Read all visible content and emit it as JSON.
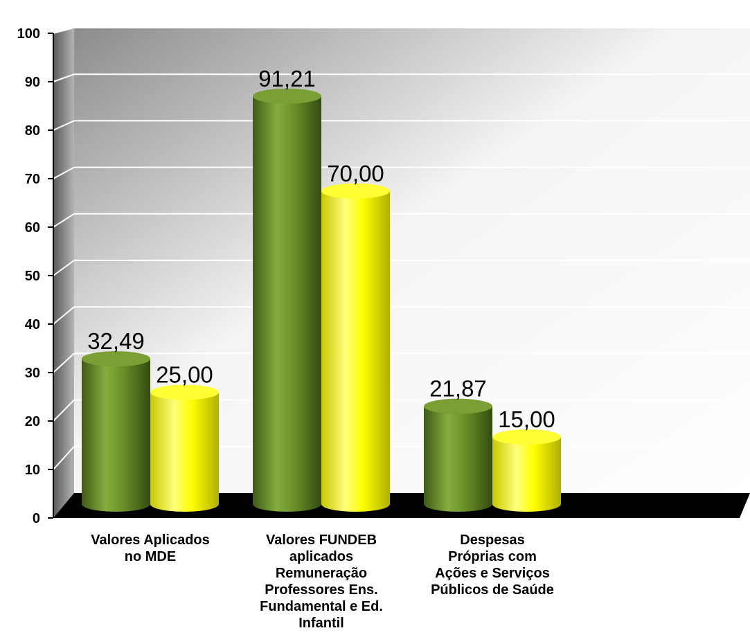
{
  "chart_data": {
    "type": "bar",
    "categories": [
      [
        "Valores Aplicados",
        "no MDE"
      ],
      [
        "Valores FUNDEB",
        "aplicados",
        "Remuneração",
        "Professores Ens.",
        "Fundamental e Ed.",
        "Infantil"
      ],
      [
        "Despesas",
        "Próprias com",
        "Ações e Serviços",
        "Públicos de Saúde"
      ]
    ],
    "series": [
      {
        "values": [
          32.49,
          91.21,
          21.87
        ],
        "labels": [
          "32,49",
          "91,21",
          "21,87"
        ],
        "color": "#6b8f2a"
      },
      {
        "values": [
          25.0,
          70.0,
          15.0
        ],
        "labels": [
          "25,00",
          "70,00",
          "15,00"
        ],
        "color": "#ffff00"
      }
    ],
    "ylim": [
      0,
      100
    ],
    "yticks": [
      0,
      10,
      20,
      30,
      40,
      50,
      60,
      70,
      80,
      90,
      100
    ],
    "grid": true,
    "legend": "none",
    "style": "3d-cylinder"
  }
}
